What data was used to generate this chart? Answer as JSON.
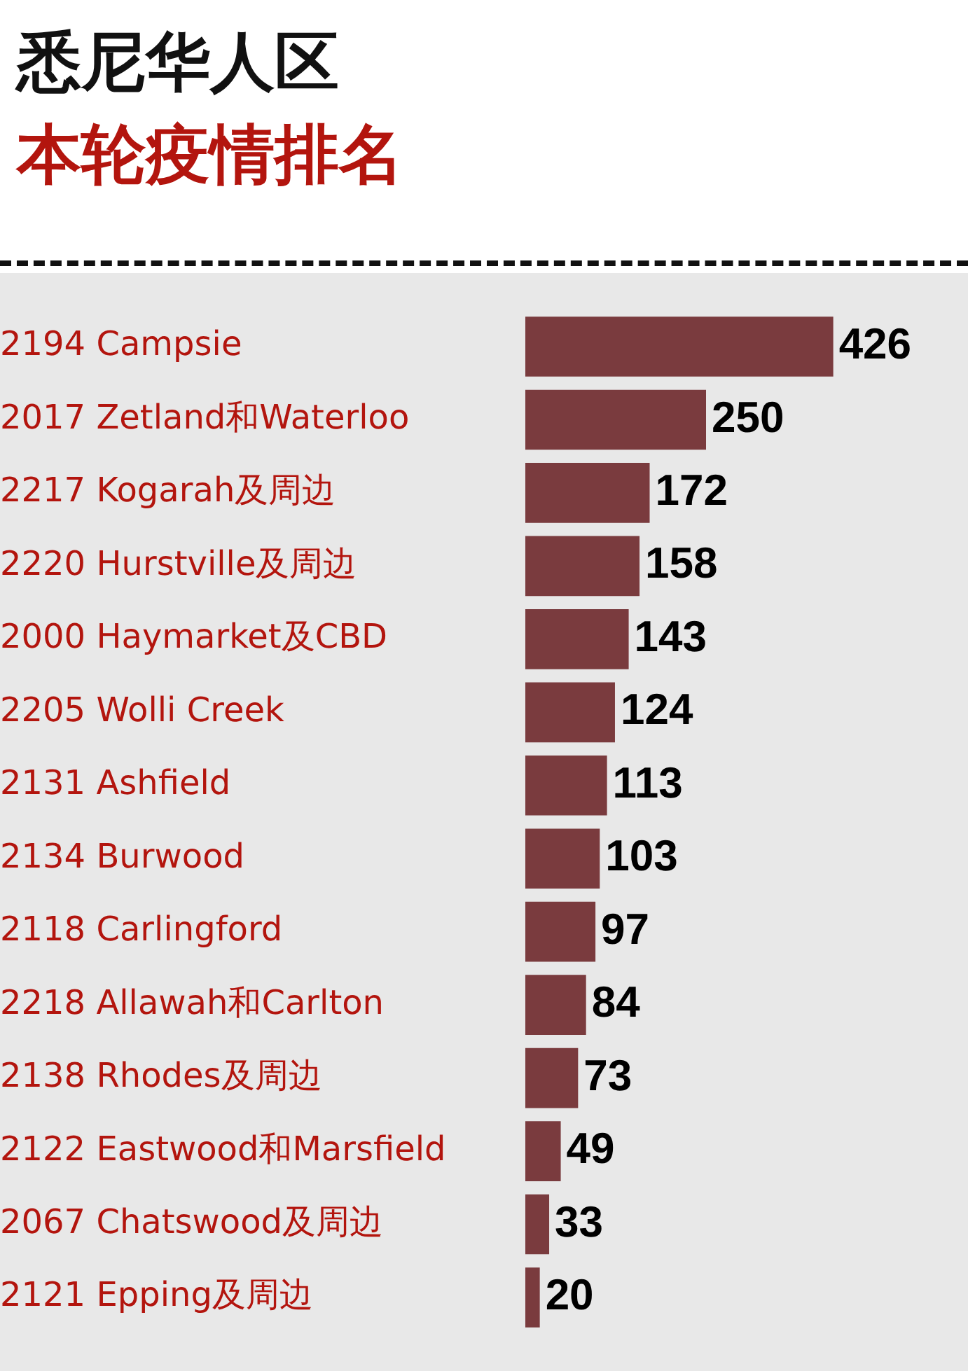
{
  "chart_data": {
    "type": "bar",
    "orientation": "horizontal",
    "title": "悉尼华人区",
    "subtitle": "本轮疫情排名",
    "categories": [
      "2194 Campsie",
      "2017 Zetland和Waterloo",
      "2217 Kogarah及周边",
      "2220 Hurstville及周边",
      "2000 Haymarket及CBD",
      "2205 Wolli Creek",
      "2131 Ashfield",
      "2134 Burwood",
      "2118 Carlingford",
      "2218 Allawah和Carlton",
      "2138 Rhodes及周边",
      "2122 Eastwood和Marsfield",
      "2067 Chatswood及周边",
      "2121 Epping及周边"
    ],
    "values": [
      426,
      250,
      172,
      158,
      143,
      124,
      113,
      103,
      97,
      84,
      73,
      49,
      33,
      20
    ],
    "color": "#7a3b3e",
    "data_labels": true,
    "grid": false,
    "legend": false
  }
}
